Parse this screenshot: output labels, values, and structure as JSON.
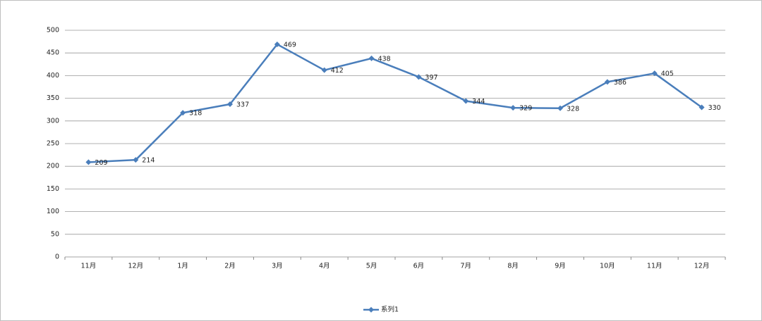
{
  "chart_data": {
    "type": "line",
    "categories": [
      "11月",
      "12月",
      "1月",
      "2月",
      "3月",
      "4月",
      "5月",
      "6月",
      "7月",
      "8月",
      "9月",
      "10月",
      "11月",
      "12月"
    ],
    "series": [
      {
        "name": "系列1",
        "color": "#4a7ebb",
        "values": [
          209,
          214,
          318,
          337,
          469,
          412,
          438,
          397,
          344,
          329,
          328,
          386,
          405,
          330
        ]
      }
    ],
    "ylim": [
      0,
      500
    ],
    "yticks": [
      0,
      50,
      100,
      150,
      200,
      250,
      300,
      350,
      400,
      450,
      500
    ],
    "grid": true,
    "legend": "bottom"
  }
}
